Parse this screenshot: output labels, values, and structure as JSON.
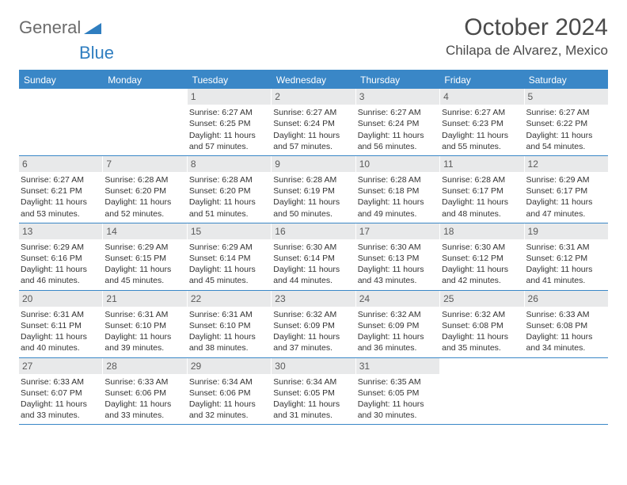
{
  "logo": {
    "general": "General",
    "blue": "Blue"
  },
  "title": "October 2024",
  "location": "Chilapa de Alvarez, Mexico",
  "colors": {
    "header_bar": "#3a87c7",
    "daynum_bg": "#e8e9ea",
    "logo_gray": "#6b6b6b",
    "logo_blue": "#2f7ec0",
    "triangle": "#2f7ec0"
  },
  "weekdays": [
    "Sunday",
    "Monday",
    "Tuesday",
    "Wednesday",
    "Thursday",
    "Friday",
    "Saturday"
  ],
  "weeks": [
    [
      {
        "n": "",
        "sunrise": "",
        "sunset": "",
        "daylight": ""
      },
      {
        "n": "",
        "sunrise": "",
        "sunset": "",
        "daylight": ""
      },
      {
        "n": "1",
        "sunrise": "Sunrise: 6:27 AM",
        "sunset": "Sunset: 6:25 PM",
        "daylight": "Daylight: 11 hours and 57 minutes."
      },
      {
        "n": "2",
        "sunrise": "Sunrise: 6:27 AM",
        "sunset": "Sunset: 6:24 PM",
        "daylight": "Daylight: 11 hours and 57 minutes."
      },
      {
        "n": "3",
        "sunrise": "Sunrise: 6:27 AM",
        "sunset": "Sunset: 6:24 PM",
        "daylight": "Daylight: 11 hours and 56 minutes."
      },
      {
        "n": "4",
        "sunrise": "Sunrise: 6:27 AM",
        "sunset": "Sunset: 6:23 PM",
        "daylight": "Daylight: 11 hours and 55 minutes."
      },
      {
        "n": "5",
        "sunrise": "Sunrise: 6:27 AM",
        "sunset": "Sunset: 6:22 PM",
        "daylight": "Daylight: 11 hours and 54 minutes."
      }
    ],
    [
      {
        "n": "6",
        "sunrise": "Sunrise: 6:27 AM",
        "sunset": "Sunset: 6:21 PM",
        "daylight": "Daylight: 11 hours and 53 minutes."
      },
      {
        "n": "7",
        "sunrise": "Sunrise: 6:28 AM",
        "sunset": "Sunset: 6:20 PM",
        "daylight": "Daylight: 11 hours and 52 minutes."
      },
      {
        "n": "8",
        "sunrise": "Sunrise: 6:28 AM",
        "sunset": "Sunset: 6:20 PM",
        "daylight": "Daylight: 11 hours and 51 minutes."
      },
      {
        "n": "9",
        "sunrise": "Sunrise: 6:28 AM",
        "sunset": "Sunset: 6:19 PM",
        "daylight": "Daylight: 11 hours and 50 minutes."
      },
      {
        "n": "10",
        "sunrise": "Sunrise: 6:28 AM",
        "sunset": "Sunset: 6:18 PM",
        "daylight": "Daylight: 11 hours and 49 minutes."
      },
      {
        "n": "11",
        "sunrise": "Sunrise: 6:28 AM",
        "sunset": "Sunset: 6:17 PM",
        "daylight": "Daylight: 11 hours and 48 minutes."
      },
      {
        "n": "12",
        "sunrise": "Sunrise: 6:29 AM",
        "sunset": "Sunset: 6:17 PM",
        "daylight": "Daylight: 11 hours and 47 minutes."
      }
    ],
    [
      {
        "n": "13",
        "sunrise": "Sunrise: 6:29 AM",
        "sunset": "Sunset: 6:16 PM",
        "daylight": "Daylight: 11 hours and 46 minutes."
      },
      {
        "n": "14",
        "sunrise": "Sunrise: 6:29 AM",
        "sunset": "Sunset: 6:15 PM",
        "daylight": "Daylight: 11 hours and 45 minutes."
      },
      {
        "n": "15",
        "sunrise": "Sunrise: 6:29 AM",
        "sunset": "Sunset: 6:14 PM",
        "daylight": "Daylight: 11 hours and 45 minutes."
      },
      {
        "n": "16",
        "sunrise": "Sunrise: 6:30 AM",
        "sunset": "Sunset: 6:14 PM",
        "daylight": "Daylight: 11 hours and 44 minutes."
      },
      {
        "n": "17",
        "sunrise": "Sunrise: 6:30 AM",
        "sunset": "Sunset: 6:13 PM",
        "daylight": "Daylight: 11 hours and 43 minutes."
      },
      {
        "n": "18",
        "sunrise": "Sunrise: 6:30 AM",
        "sunset": "Sunset: 6:12 PM",
        "daylight": "Daylight: 11 hours and 42 minutes."
      },
      {
        "n": "19",
        "sunrise": "Sunrise: 6:31 AM",
        "sunset": "Sunset: 6:12 PM",
        "daylight": "Daylight: 11 hours and 41 minutes."
      }
    ],
    [
      {
        "n": "20",
        "sunrise": "Sunrise: 6:31 AM",
        "sunset": "Sunset: 6:11 PM",
        "daylight": "Daylight: 11 hours and 40 minutes."
      },
      {
        "n": "21",
        "sunrise": "Sunrise: 6:31 AM",
        "sunset": "Sunset: 6:10 PM",
        "daylight": "Daylight: 11 hours and 39 minutes."
      },
      {
        "n": "22",
        "sunrise": "Sunrise: 6:31 AM",
        "sunset": "Sunset: 6:10 PM",
        "daylight": "Daylight: 11 hours and 38 minutes."
      },
      {
        "n": "23",
        "sunrise": "Sunrise: 6:32 AM",
        "sunset": "Sunset: 6:09 PM",
        "daylight": "Daylight: 11 hours and 37 minutes."
      },
      {
        "n": "24",
        "sunrise": "Sunrise: 6:32 AM",
        "sunset": "Sunset: 6:09 PM",
        "daylight": "Daylight: 11 hours and 36 minutes."
      },
      {
        "n": "25",
        "sunrise": "Sunrise: 6:32 AM",
        "sunset": "Sunset: 6:08 PM",
        "daylight": "Daylight: 11 hours and 35 minutes."
      },
      {
        "n": "26",
        "sunrise": "Sunrise: 6:33 AM",
        "sunset": "Sunset: 6:08 PM",
        "daylight": "Daylight: 11 hours and 34 minutes."
      }
    ],
    [
      {
        "n": "27",
        "sunrise": "Sunrise: 6:33 AM",
        "sunset": "Sunset: 6:07 PM",
        "daylight": "Daylight: 11 hours and 33 minutes."
      },
      {
        "n": "28",
        "sunrise": "Sunrise: 6:33 AM",
        "sunset": "Sunset: 6:06 PM",
        "daylight": "Daylight: 11 hours and 33 minutes."
      },
      {
        "n": "29",
        "sunrise": "Sunrise: 6:34 AM",
        "sunset": "Sunset: 6:06 PM",
        "daylight": "Daylight: 11 hours and 32 minutes."
      },
      {
        "n": "30",
        "sunrise": "Sunrise: 6:34 AM",
        "sunset": "Sunset: 6:05 PM",
        "daylight": "Daylight: 11 hours and 31 minutes."
      },
      {
        "n": "31",
        "sunrise": "Sunrise: 6:35 AM",
        "sunset": "Sunset: 6:05 PM",
        "daylight": "Daylight: 11 hours and 30 minutes."
      },
      {
        "n": "",
        "sunrise": "",
        "sunset": "",
        "daylight": ""
      },
      {
        "n": "",
        "sunrise": "",
        "sunset": "",
        "daylight": ""
      }
    ]
  ]
}
